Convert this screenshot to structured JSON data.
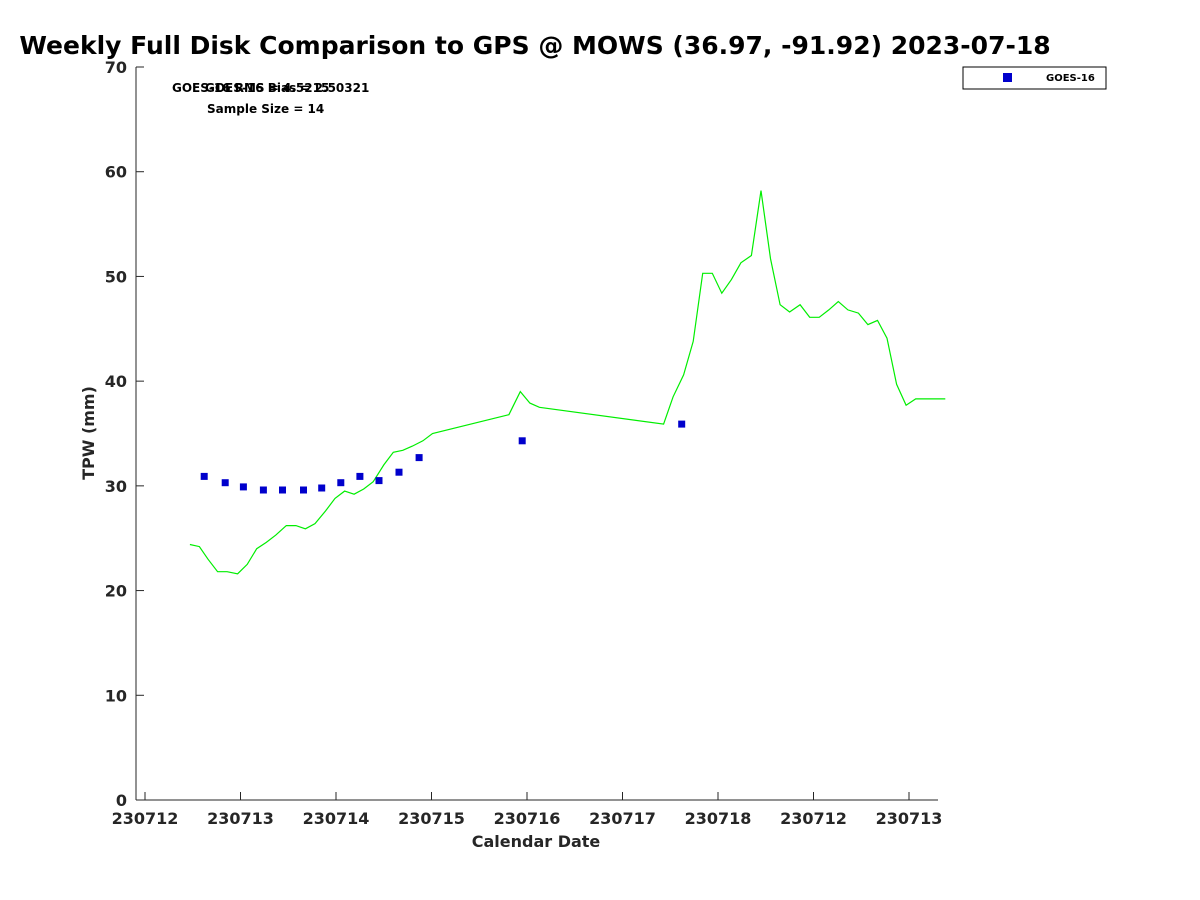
{
  "chart_data": {
    "type": "scatter",
    "title": "Weekly Full Disk Comparison to GPS @ MOWS (36.97, -91.92) 2023-07-18",
    "xlabel": "Calendar Date",
    "ylabel": "TPW (mm)",
    "ylim": [
      0,
      70
    ],
    "y_ticks": [
      0,
      10,
      20,
      30,
      40,
      50,
      60,
      70
    ],
    "x_tick_labels": [
      "230712",
      "230713",
      "230714",
      "230715",
      "230716",
      "230717",
      "230718",
      "230712",
      "230713"
    ],
    "grid": false,
    "legend_position": "top-right",
    "annotations": [
      "GOES-16 RMS = 4.5215",
      "GOES-16 Bias = 2.50321",
      "Sample Size = 14"
    ],
    "series": [
      {
        "name": "GOES-16",
        "kind": "scatter",
        "marker": "square",
        "color": "#0000cc",
        "x": [
          12.62,
          12.84,
          13.03,
          13.24,
          13.44,
          13.66,
          13.85,
          14.05,
          14.25,
          14.45,
          14.66,
          14.87,
          15.95,
          17.62
        ],
        "y": [
          30.9,
          30.3,
          29.9,
          29.6,
          29.6,
          29.6,
          29.8,
          30.3,
          30.9,
          30.5,
          31.3,
          32.7,
          34.3,
          35.9
        ]
      },
      {
        "kind": "line",
        "color": "#00ee00",
        "x": [
          12.47,
          12.57,
          12.66,
          12.76,
          12.86,
          12.97,
          13.07,
          13.17,
          13.27,
          13.37,
          13.48,
          13.58,
          13.68,
          13.78,
          13.89,
          13.99,
          14.09,
          14.19,
          14.29,
          14.39,
          14.5,
          14.6,
          14.7,
          14.8,
          14.91,
          15.01,
          15.81,
          15.93,
          16.03,
          16.13,
          17.43,
          17.53,
          17.64,
          17.74,
          17.84,
          17.94,
          18.04,
          18.14,
          18.24,
          18.35,
          18.45,
          18.55,
          18.65,
          18.75,
          18.86,
          18.96,
          19.06,
          19.16,
          19.26,
          19.36,
          19.47,
          19.57,
          19.67,
          19.77,
          19.87,
          19.97,
          20.07,
          20.18,
          20.28,
          20.38
        ],
        "y": [
          24.4,
          24.2,
          23.0,
          21.8,
          21.8,
          21.6,
          22.5,
          24.0,
          24.6,
          25.3,
          26.2,
          26.2,
          25.9,
          26.4,
          27.6,
          28.8,
          29.5,
          29.2,
          29.7,
          30.4,
          32.0,
          33.2,
          33.4,
          33.8,
          34.3,
          35.0,
          36.8,
          39.0,
          37.9,
          37.5,
          35.9,
          38.5,
          40.6,
          43.8,
          50.3,
          50.3,
          48.4,
          49.7,
          51.3,
          52.0,
          58.2,
          51.7,
          47.3,
          46.6,
          47.3,
          46.1,
          46.1,
          46.8,
          47.6,
          46.8,
          46.5,
          45.4,
          45.8,
          44.1,
          39.7,
          37.7,
          38.3,
          38.3,
          38.3,
          38.3
        ]
      }
    ]
  }
}
